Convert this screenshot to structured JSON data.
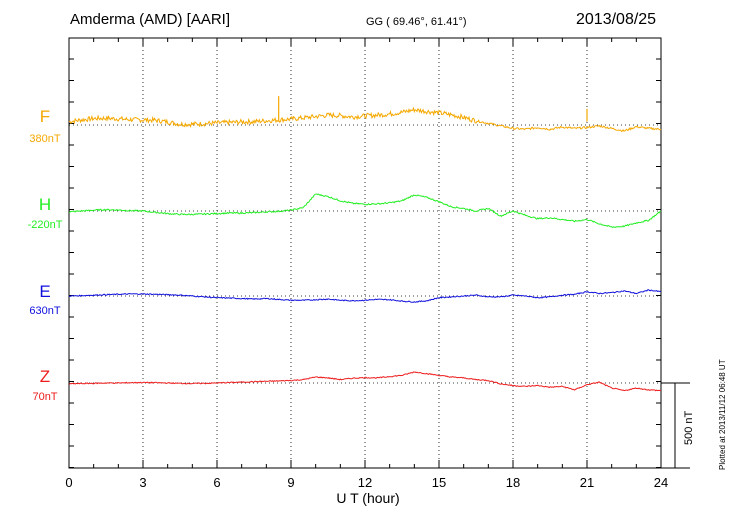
{
  "header": {
    "station": "Amderma (AMD)  [AARI]",
    "coords": "GG ( 69.46°,  61.41°)",
    "date": "2013/08/25"
  },
  "plotted_note": "Plotted at 2013/11/12 06:48 UT",
  "scale_bar_label": "500 nT",
  "chart_data": {
    "type": "line",
    "title": "Amderma (AMD)  [AARI]",
    "xlabel": "U T (hour)",
    "ylabel": "",
    "xlim": [
      0,
      24
    ],
    "x_ticks": [
      "0",
      "3",
      "6",
      "9",
      "12",
      "15",
      "18",
      "21",
      "24"
    ],
    "grid": true,
    "scale_nT": 500,
    "series": [
      {
        "name": "F",
        "baseline": "380nT",
        "color": "#f5a800",
        "x": [
          0,
          0.5,
          1,
          1.5,
          2,
          2.5,
          3,
          3.5,
          4,
          4.5,
          5,
          5.5,
          6,
          6.5,
          7,
          7.5,
          8,
          8.5,
          9,
          9.5,
          10,
          10.5,
          11,
          11.5,
          12,
          12.5,
          13,
          13.5,
          14,
          14.5,
          15,
          15.5,
          16,
          16.5,
          17,
          17.5,
          18,
          18.5,
          19,
          19.5,
          20,
          20.5,
          21,
          21.5,
          22,
          22.5,
          23,
          23.5,
          24
        ],
        "y": [
          20,
          30,
          38,
          40,
          36,
          32,
          30,
          28,
          18,
          5,
          5,
          8,
          12,
          15,
          18,
          20,
          25,
          30,
          35,
          42,
          50,
          58,
          55,
          48,
          54,
          58,
          65,
          75,
          90,
          80,
          72,
          60,
          45,
          25,
          10,
          -5,
          -20,
          -25,
          -15,
          -25,
          -12,
          -20,
          -15,
          -5,
          -20,
          -35,
          -10,
          -20,
          -25
        ],
        "spikes": [
          {
            "x": 8.5,
            "y": 170
          },
          {
            "x": 21,
            "y": 95
          }
        ]
      },
      {
        "name": "H",
        "baseline": "-220nT",
        "color": "#22ee22",
        "x": [
          0,
          0.5,
          1,
          1.5,
          2,
          2.5,
          3,
          3.5,
          4,
          4.5,
          5,
          5.5,
          6,
          6.5,
          7,
          7.5,
          8,
          8.5,
          9,
          9.5,
          10,
          10.5,
          11,
          11.5,
          12,
          12.5,
          13,
          13.5,
          14,
          14.5,
          15,
          15.5,
          16,
          16.5,
          17,
          17.5,
          18,
          18.5,
          19,
          19.5,
          20,
          20.5,
          21,
          21.5,
          22,
          22.5,
          23,
          23.5,
          24
        ],
        "y": [
          -5,
          0,
          5,
          8,
          6,
          2,
          0,
          -8,
          -15,
          -20,
          -20,
          -18,
          -15,
          -12,
          -12,
          -10,
          -5,
          -2,
          5,
          20,
          100,
          85,
          60,
          45,
          40,
          42,
          48,
          60,
          95,
          80,
          55,
          25,
          15,
          0,
          15,
          -30,
          0,
          -25,
          -45,
          -40,
          -50,
          -60,
          -50,
          -75,
          -95,
          -90,
          -70,
          -55,
          0
        ]
      },
      {
        "name": "E",
        "baseline": "630nT",
        "color": "#1010dd",
        "x": [
          0,
          0.5,
          1,
          1.5,
          2,
          2.5,
          3,
          3.5,
          4,
          4.5,
          5,
          5.5,
          6,
          6.5,
          7,
          7.5,
          8,
          8.5,
          9,
          9.5,
          10,
          10.5,
          11,
          11.5,
          12,
          12.5,
          13,
          13.5,
          14,
          14.5,
          15,
          15.5,
          16,
          16.5,
          17,
          17.5,
          18,
          18.5,
          19,
          19.5,
          20,
          20.5,
          21,
          21.5,
          22,
          22.5,
          23,
          23.5,
          24
        ],
        "y": [
          0,
          2,
          5,
          8,
          10,
          12,
          12,
          10,
          8,
          5,
          0,
          -5,
          -10,
          -12,
          -15,
          -18,
          -15,
          -20,
          -25,
          -25,
          -22,
          -18,
          -25,
          -28,
          -25,
          -20,
          -22,
          -30,
          -35,
          -28,
          -10,
          -5,
          0,
          5,
          -5,
          -5,
          5,
          0,
          -10,
          -5,
          5,
          10,
          25,
          15,
          20,
          30,
          15,
          35,
          25
        ]
      },
      {
        "name": "Z",
        "baseline": "70nT",
        "color": "#ee1c1c",
        "x": [
          0,
          0.5,
          1,
          1.5,
          2,
          2.5,
          3,
          3.5,
          4,
          4.5,
          5,
          5.5,
          6,
          6.5,
          7,
          7.5,
          8,
          8.5,
          9,
          9.5,
          10,
          10.5,
          11,
          11.5,
          12,
          12.5,
          13,
          13.5,
          14,
          14.5,
          15,
          15.5,
          16,
          16.5,
          17,
          17.5,
          18,
          18.5,
          19,
          19.5,
          20,
          20.5,
          21,
          21.5,
          22,
          22.5,
          23,
          23.5,
          24
        ],
        "y": [
          -5,
          -3,
          -2,
          0,
          0,
          2,
          3,
          2,
          0,
          -2,
          -3,
          -2,
          0,
          3,
          5,
          8,
          10,
          12,
          15,
          20,
          35,
          30,
          20,
          28,
          32,
          30,
          38,
          45,
          65,
          55,
          45,
          35,
          30,
          20,
          15,
          -5,
          -15,
          -20,
          -15,
          -25,
          -20,
          -40,
          -10,
          5,
          -30,
          -45,
          -30,
          -40,
          -45
        ]
      }
    ]
  }
}
